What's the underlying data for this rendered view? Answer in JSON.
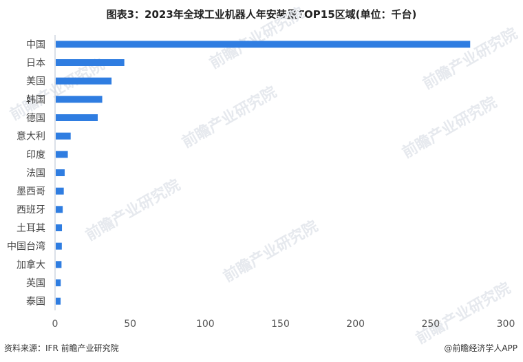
{
  "chart_data": {
    "type": "bar",
    "orientation": "horizontal",
    "title": "图表3：2023年全球工业机器人年安装量TOP15区域(单位：千台)",
    "categories": [
      "中国",
      "日本",
      "美国",
      "韩国",
      "德国",
      "意大利",
      "印度",
      "法国",
      "墨西哥",
      "西班牙",
      "土耳其",
      "中国台湾",
      "加拿大",
      "英国",
      "泰国"
    ],
    "values": [
      276.3,
      46.1,
      37.6,
      31.4,
      28.4,
      10.4,
      8.5,
      6.4,
      5.8,
      5.1,
      4.6,
      4.5,
      4.3,
      3.8,
      3.7
    ],
    "xlim": [
      0,
      300
    ],
    "xticks": [
      "0",
      "50",
      "100",
      "150",
      "200",
      "250",
      "300"
    ],
    "grid": false,
    "bar_color": "#2f7de1"
  },
  "footer": {
    "source": "资料来源：IFR 前瞻产业研究院",
    "credit": "@前瞻经济学人APP"
  },
  "watermark": "前瞻产业研究院"
}
